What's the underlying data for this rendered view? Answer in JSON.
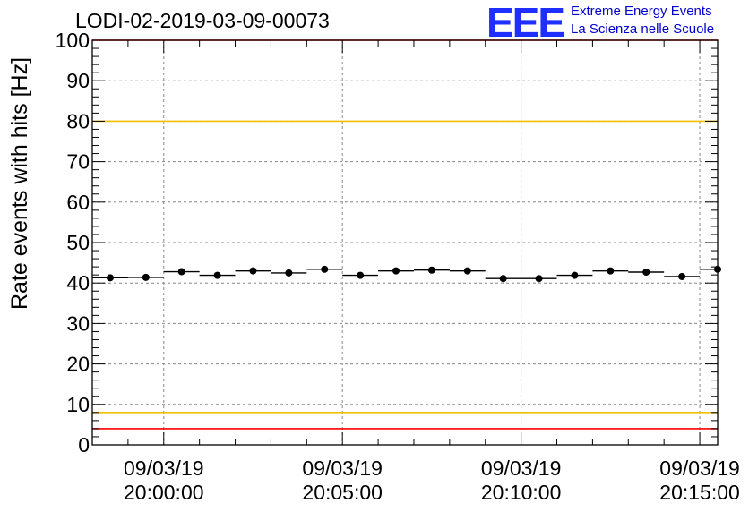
{
  "title": "LODI-02-2019-03-09-00073",
  "logo": {
    "mark": "EEE",
    "line1": "Extreme Energy Events",
    "line2": "La Scienza nelle Scuole"
  },
  "colors": {
    "upper_limit": "#ff0000",
    "lower_limit": "#ff0000",
    "upper_warning": "#f0c000",
    "lower_warning": "#f0c000",
    "logo": "#1f2fff",
    "grid": "#888888"
  },
  "chart_data": {
    "type": "scatter",
    "ylabel": "Rate events with hits [Hz]",
    "xlabel": "",
    "ylim": [
      0,
      100
    ],
    "y_major_ticks": [
      "0",
      "10",
      "20",
      "30",
      "40",
      "50",
      "60",
      "70",
      "80",
      "90",
      "100"
    ],
    "x_tick_labels": [
      {
        "date": "09/03/19",
        "time": "20:00:00"
      },
      {
        "date": "09/03/19",
        "time": "20:05:00"
      },
      {
        "date": "09/03/19",
        "time": "20:10:00"
      },
      {
        "date": "09/03/19",
        "time": "20:15:00"
      }
    ],
    "xlim": [
      "19:58:00",
      "20:15:30"
    ],
    "grid": true,
    "reference_lines": [
      {
        "y": 100,
        "kind": "upper_limit"
      },
      {
        "y": 80,
        "kind": "upper_warning"
      },
      {
        "y": 8,
        "kind": "lower_warning"
      },
      {
        "y": 4,
        "kind": "lower_limit"
      }
    ],
    "bin_width_seconds": 60,
    "x": [
      "19:58:30",
      "19:59:30",
      "20:00:30",
      "20:01:30",
      "20:02:30",
      "20:03:30",
      "20:04:30",
      "20:05:30",
      "20:06:30",
      "20:07:30",
      "20:08:30",
      "20:09:30",
      "20:10:30",
      "20:11:30",
      "20:12:30",
      "20:13:30",
      "20:14:30",
      "20:15:30"
    ],
    "values": [
      41.3,
      41.4,
      42.8,
      41.9,
      43.0,
      42.5,
      43.4,
      41.9,
      43.0,
      43.2,
      43.0,
      41.1,
      41.1,
      41.9,
      43.0,
      42.7,
      41.6,
      43.4
    ]
  }
}
